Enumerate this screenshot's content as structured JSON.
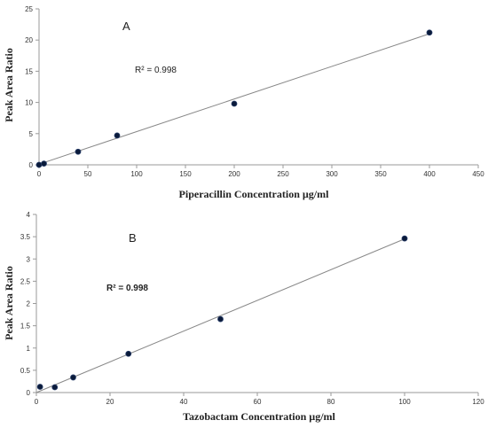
{
  "chart_data": [
    {
      "type": "scatter",
      "panel_label": "A",
      "annotation": "R² = 0.998",
      "xlabel": "Piperacillin Concentration µg/ml",
      "ylabel": "Peak Area Ratio",
      "xlim": [
        0,
        450
      ],
      "ylim": [
        0,
        25
      ],
      "x_ticks": [
        0,
        50,
        100,
        150,
        200,
        250,
        300,
        350,
        400,
        450
      ],
      "y_ticks": [
        0,
        5,
        10,
        15,
        20,
        25
      ],
      "grid": false,
      "points": [
        {
          "x": 0,
          "y": 0
        },
        {
          "x": 5,
          "y": 0.2
        },
        {
          "x": 40,
          "y": 2.1
        },
        {
          "x": 80,
          "y": 4.7
        },
        {
          "x": 200,
          "y": 9.8
        },
        {
          "x": 400,
          "y": 21.2
        }
      ],
      "trendline": {
        "x": [
          0,
          400
        ],
        "y": [
          0.1,
          21.0
        ]
      },
      "point_color": "#0a1a3a",
      "line_color": "#888888"
    },
    {
      "type": "scatter",
      "panel_label": "B",
      "annotation": "R² = 0.998",
      "xlabel": "Tazobactam Concentration µg/ml",
      "ylabel": "Peak Area Ratio",
      "xlim": [
        0,
        120
      ],
      "ylim": [
        0,
        4
      ],
      "x_ticks": [
        0,
        20,
        40,
        60,
        80,
        100,
        120
      ],
      "y_ticks": [
        0,
        0.5,
        1,
        1.5,
        2,
        2.5,
        3,
        3.5,
        4
      ],
      "grid": false,
      "points": [
        {
          "x": 1,
          "y": 0.13
        },
        {
          "x": 5,
          "y": 0.12
        },
        {
          "x": 10,
          "y": 0.34
        },
        {
          "x": 25,
          "y": 0.87
        },
        {
          "x": 50,
          "y": 1.65
        },
        {
          "x": 100,
          "y": 3.46
        }
      ],
      "trendline": {
        "x": [
          0,
          100
        ],
        "y": [
          0.0,
          3.45
        ]
      },
      "point_color": "#0a1a3a",
      "line_color": "#888888"
    }
  ]
}
